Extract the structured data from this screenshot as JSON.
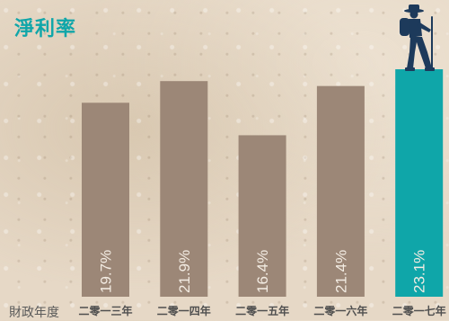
{
  "chart_data": {
    "type": "bar",
    "title": "淨利率",
    "xlabel": "財政年度",
    "ylabel": "",
    "categories": [
      "二零一三年",
      "二零一四年",
      "二零一五年",
      "二零一六年",
      "二零一七年"
    ],
    "values": [
      19.7,
      21.9,
      16.4,
      21.4,
      23.1
    ],
    "value_labels": [
      "19.7%",
      "21.9%",
      "16.4%",
      "21.4%",
      "23.1%"
    ],
    "highlight_index": 4,
    "colors": {
      "bar": "#9c8777",
      "highlight": "#0fa6a9",
      "title": "#0fa6a9",
      "hiker": "#1d3a5b"
    },
    "icons": [
      "hiker-icon"
    ]
  }
}
